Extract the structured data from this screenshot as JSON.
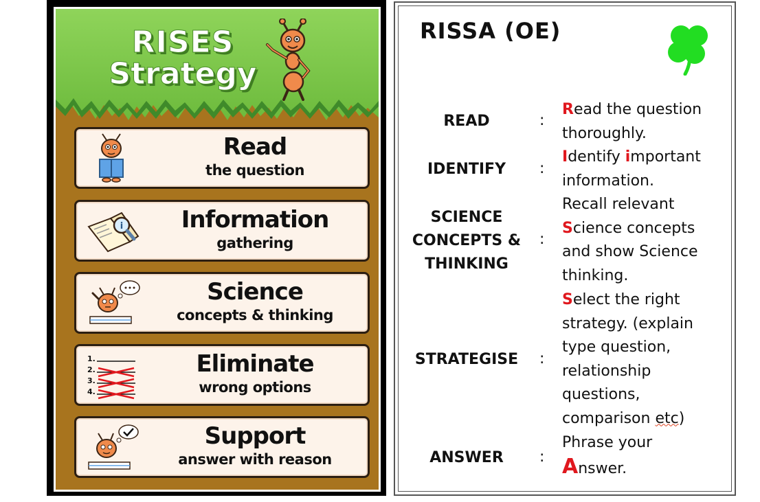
{
  "poster": {
    "title_line1": "RISES",
    "title_line2": "Strategy",
    "cards": [
      {
        "title": "Read",
        "subtitle": "the question"
      },
      {
        "title": "Information",
        "subtitle": "gathering"
      },
      {
        "title": "Science",
        "subtitle": "concepts & thinking"
      },
      {
        "title": "Eliminate",
        "subtitle": "wrong options"
      },
      {
        "title": "Support",
        "subtitle": "answer with reason"
      }
    ],
    "list_numbers": [
      "1.",
      "2.",
      "3.",
      "4."
    ]
  },
  "rissa": {
    "title": "RISSA (OE)",
    "colon": ":",
    "rows": [
      {
        "label": "READ",
        "desc_line1_initial": "R",
        "desc_line1_rest": "ead the question",
        "desc_line2": "thoroughly."
      },
      {
        "label": "IDENTIFY",
        "desc_line1_initial": "I",
        "desc_line1_mid": "dentify ",
        "desc_line1_initial2": "i",
        "desc_line1_rest": "mportant",
        "desc_line2": "information."
      },
      {
        "label_line1": "SCIENCE",
        "label_line2": "CONCEPTS &",
        "label_line3": "THINKING",
        "desc_line1": "Recall relevant",
        "desc_line2_initial": "S",
        "desc_line2_rest": "cience concepts",
        "desc_line3": "and show Science",
        "desc_line4": "thinking."
      },
      {
        "label": "STRATEGISE",
        "desc_line1_initial": "S",
        "desc_line1_rest": "elect the right",
        "desc_line2": "strategy. (explain",
        "desc_line3": "type question,",
        "desc_line4": "relationship",
        "desc_line5": "questions,",
        "desc_line6_a": "comparison ",
        "desc_line6_b": "etc",
        "desc_line6_c": ")"
      },
      {
        "label": "ANSWER",
        "desc_line1": "Phrase your",
        "desc_line2_initial": "A",
        "desc_line2_rest": "nswer."
      }
    ]
  },
  "colors": {
    "grass": "#6cba3c",
    "dirt": "#a8741e",
    "card_bg": "#fdf3ea",
    "accent_red": "#e0181e",
    "clover": "#22dd22"
  }
}
